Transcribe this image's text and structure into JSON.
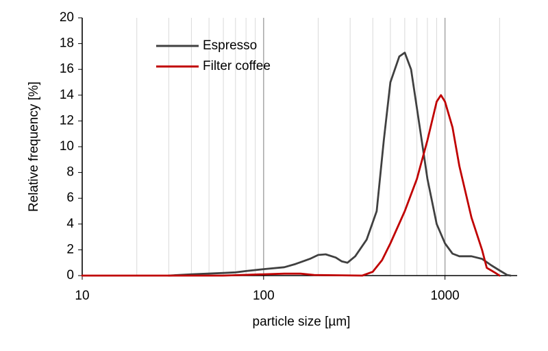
{
  "chart_data": {
    "type": "line",
    "x_label": "particle size [µm]",
    "y_label": "Relative frequency [%]",
    "xscale": "log",
    "xlim": [
      10,
      2500
    ],
    "ylim": [
      0,
      20
    ],
    "xticks": [
      10,
      100,
      1000
    ],
    "xminorticks": [
      20,
      30,
      40,
      50,
      60,
      70,
      80,
      90,
      200,
      300,
      400,
      500,
      600,
      700,
      800,
      900,
      2000
    ],
    "yticks": [
      0,
      2,
      4,
      6,
      8,
      10,
      12,
      14,
      16,
      18,
      20
    ],
    "grid": true,
    "legend": "upper left",
    "series": [
      {
        "name": "Espresso",
        "color": "#404040",
        "x": [
          30,
          40,
          60,
          70,
          80,
          100,
          130,
          150,
          180,
          200,
          220,
          250,
          270,
          290,
          320,
          370,
          420,
          460,
          500,
          560,
          600,
          650,
          700,
          800,
          900,
          1000,
          1100,
          1200,
          1400,
          1600,
          1800,
          2000,
          2200,
          2300
        ],
        "values": [
          0,
          0.1,
          0.2,
          0.25,
          0.35,
          0.5,
          0.65,
          0.9,
          1.3,
          1.6,
          1.65,
          1.4,
          1.1,
          1.0,
          1.5,
          2.8,
          5.0,
          10.5,
          15.0,
          17.0,
          17.3,
          16.0,
          13.0,
          7.5,
          4.0,
          2.5,
          1.7,
          1.5,
          1.5,
          1.3,
          0.8,
          0.4,
          0.05,
          0
        ]
      },
      {
        "name": "Filter coffee",
        "color": "#c00000",
        "x": [
          10,
          60,
          100,
          130,
          160,
          190,
          350,
          400,
          450,
          500,
          600,
          700,
          800,
          900,
          950,
          1000,
          1100,
          1200,
          1400,
          1600,
          1700,
          1800,
          1900,
          2000
        ],
        "values": [
          0,
          0,
          0.1,
          0.15,
          0.15,
          0.05,
          0,
          0.3,
          1.2,
          2.5,
          5.0,
          7.5,
          10.5,
          13.5,
          14.0,
          13.5,
          11.5,
          8.5,
          4.5,
          2.0,
          0.6,
          0.4,
          0.2,
          0
        ]
      }
    ]
  }
}
